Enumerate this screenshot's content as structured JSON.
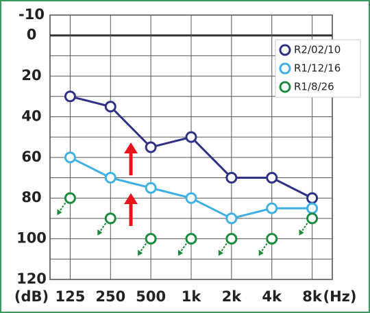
{
  "chart_data": {
    "type": "line",
    "categories": [
      "125",
      "250",
      "500",
      "1k",
      "2k",
      "4k",
      "8k"
    ],
    "x_unit": "(Hz)",
    "y_unit": "(dB)",
    "ylim": [
      -10,
      120
    ],
    "y_inverted": true,
    "yticks": [
      -10,
      0,
      20,
      40,
      60,
      80,
      100,
      120
    ],
    "y_minor_ticks": [
      10,
      30,
      50,
      70,
      90,
      110
    ],
    "grid": true,
    "legend": "upper right",
    "series": [
      {
        "name": "R2/02/10",
        "color": "#2e3184",
        "values": [
          30,
          35,
          55,
          50,
          70,
          70,
          80
        ],
        "connected": true
      },
      {
        "name": "R1/12/16",
        "color": "#3fb0e3",
        "values": [
          60,
          70,
          75,
          80,
          90,
          85,
          85
        ],
        "connected": true
      },
      {
        "name": "R1/8/26",
        "color": "#1a8a3c",
        "values": [
          80,
          90,
          100,
          100,
          100,
          100,
          90
        ],
        "connected": false,
        "no_response_arrow": true
      }
    ]
  }
}
